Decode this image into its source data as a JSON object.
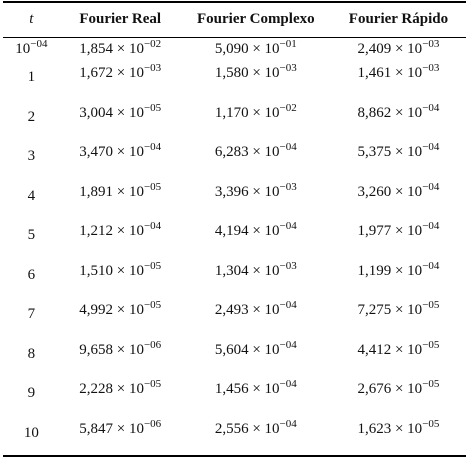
{
  "table": {
    "headers": [
      "t",
      "Fourier Real",
      "Fourier Complexo",
      "Fourier Rápido"
    ],
    "rows": [
      {
        "t": "10",
        "t_exp": "−04",
        "cells": [
          {
            "m": "1,854",
            "e": "−02"
          },
          {
            "m": "5,090",
            "e": "−01"
          },
          {
            "m": "2,409",
            "e": "−03"
          }
        ]
      },
      {
        "t": "1",
        "t_exp": "",
        "cells": [
          {
            "m": "1,672",
            "e": "−03"
          },
          {
            "m": "1,580",
            "e": "−03"
          },
          {
            "m": "1,461",
            "e": "−03"
          }
        ]
      },
      {
        "t": "2",
        "t_exp": "",
        "cells": [
          {
            "m": "3,004",
            "e": "−05"
          },
          {
            "m": "1,170",
            "e": "−02"
          },
          {
            "m": "8,862",
            "e": "−04"
          }
        ]
      },
      {
        "t": "3",
        "t_exp": "",
        "cells": [
          {
            "m": "3,470",
            "e": "−04"
          },
          {
            "m": "6,283",
            "e": "−04"
          },
          {
            "m": "5,375",
            "e": "−04"
          }
        ]
      },
      {
        "t": "4",
        "t_exp": "",
        "cells": [
          {
            "m": "1,891",
            "e": "−05"
          },
          {
            "m": "3,396",
            "e": "−03"
          },
          {
            "m": "3,260",
            "e": "−04"
          }
        ]
      },
      {
        "t": "5",
        "t_exp": "",
        "cells": [
          {
            "m": "1,212",
            "e": "−04"
          },
          {
            "m": "4,194",
            "e": "−04"
          },
          {
            "m": "1,977",
            "e": "−04"
          }
        ]
      },
      {
        "t": "6",
        "t_exp": "",
        "cells": [
          {
            "m": "1,510",
            "e": "−05"
          },
          {
            "m": "1,304",
            "e": "−03"
          },
          {
            "m": "1,199",
            "e": "−04"
          }
        ]
      },
      {
        "t": "7",
        "t_exp": "",
        "cells": [
          {
            "m": "4,992",
            "e": "−05"
          },
          {
            "m": "2,493",
            "e": "−04"
          },
          {
            "m": "7,275",
            "e": "−05"
          }
        ]
      },
      {
        "t": "8",
        "t_exp": "",
        "cells": [
          {
            "m": "9,658",
            "e": "−06"
          },
          {
            "m": "5,604",
            "e": "−04"
          },
          {
            "m": "4,412",
            "e": "−05"
          }
        ]
      },
      {
        "t": "9",
        "t_exp": "",
        "cells": [
          {
            "m": "2,228",
            "e": "−05"
          },
          {
            "m": "1,456",
            "e": "−04"
          },
          {
            "m": "2,676",
            "e": "−05"
          }
        ]
      },
      {
        "t": "10",
        "t_exp": "",
        "cells": [
          {
            "m": "5,847",
            "e": "−06"
          },
          {
            "m": "2,556",
            "e": "−04"
          },
          {
            "m": "1,623",
            "e": "−05"
          }
        ]
      }
    ]
  }
}
